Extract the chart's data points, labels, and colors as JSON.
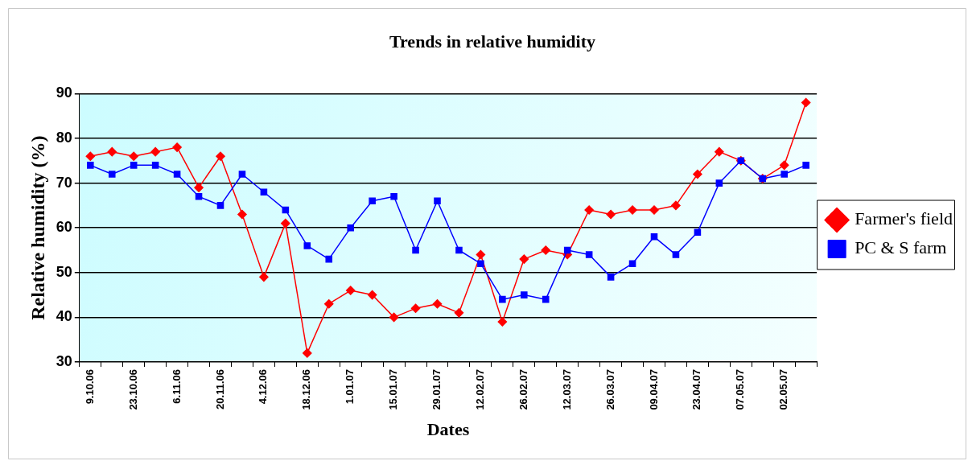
{
  "chart_data": {
    "type": "line",
    "title": "Trends in relative humidity",
    "xlabel": "Dates",
    "ylabel": "Relative humidity (%)",
    "categories": [
      "9.10.06",
      null,
      "23.10.06",
      null,
      "6.11.06",
      null,
      "20.11.06",
      null,
      "4.12.06",
      null,
      "18.12.06",
      null,
      "1.01.07",
      null,
      "15.01.07",
      null,
      "29.01.07",
      null,
      "12.02.07",
      null,
      "26.02.07",
      null,
      "12.03.07",
      null,
      "26.03.07",
      null,
      "09.04.07",
      null,
      "23.04.07",
      null,
      "07.05.07",
      null,
      "02.05.07",
      null
    ],
    "series": [
      {
        "name": "Farmer's field",
        "color": "#ff0000",
        "marker": "diamond",
        "values": [
          76,
          77,
          76,
          77,
          78,
          69,
          76,
          63,
          49,
          61,
          32,
          43,
          46,
          45,
          40,
          42,
          43,
          41,
          54,
          39,
          53,
          55,
          54,
          64,
          63,
          64,
          64,
          65,
          72,
          77,
          75,
          71,
          74,
          88
        ]
      },
      {
        "name": "PC & S farm",
        "color": "#0000ff",
        "marker": "square",
        "values": [
          74,
          72,
          74,
          74,
          72,
          67,
          65,
          72,
          68,
          64,
          56,
          53,
          60,
          66,
          67,
          55,
          66,
          55,
          52,
          44,
          45,
          44,
          55,
          54,
          49,
          52,
          58,
          54,
          59,
          70,
          75,
          71,
          72,
          74
        ]
      }
    ],
    "ylim": [
      30,
      90
    ],
    "yticks": [
      30,
      40,
      50,
      60,
      70,
      80,
      90
    ],
    "grid": "y",
    "legend": "right"
  }
}
